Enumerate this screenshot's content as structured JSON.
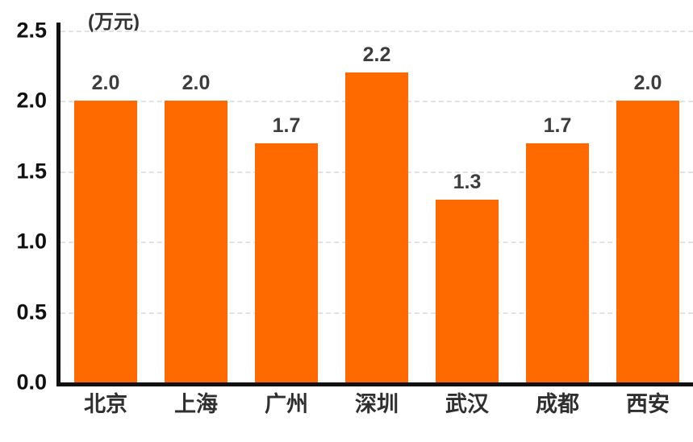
{
  "chart_data": {
    "type": "bar",
    "title": "",
    "unit_label": "(万元)",
    "categories": [
      "北京",
      "上海",
      "广州",
      "深圳",
      "武汉",
      "成都",
      "西安"
    ],
    "values": [
      2.0,
      2.0,
      1.7,
      2.2,
      1.3,
      1.7,
      2.0
    ],
    "value_labels": [
      "2.0",
      "2.0",
      "1.7",
      "2.2",
      "1.3",
      "1.7",
      "2.0"
    ],
    "xlabel": "",
    "ylabel": "",
    "ylim": [
      0,
      2.5
    ],
    "yticks": [
      0,
      0.5,
      1.0,
      1.5,
      2.0,
      2.5
    ],
    "ytick_labels": [
      "0.0",
      "0.5",
      "1.0",
      "1.5",
      "2.0",
      "2.5"
    ],
    "grid": "horizontal-dashed",
    "legend": "none",
    "bar_color": "#FF6A00",
    "value_label_color": "#3d3d3d",
    "axis_color": "#111111",
    "gridline_color": "#e2e2e2"
  }
}
